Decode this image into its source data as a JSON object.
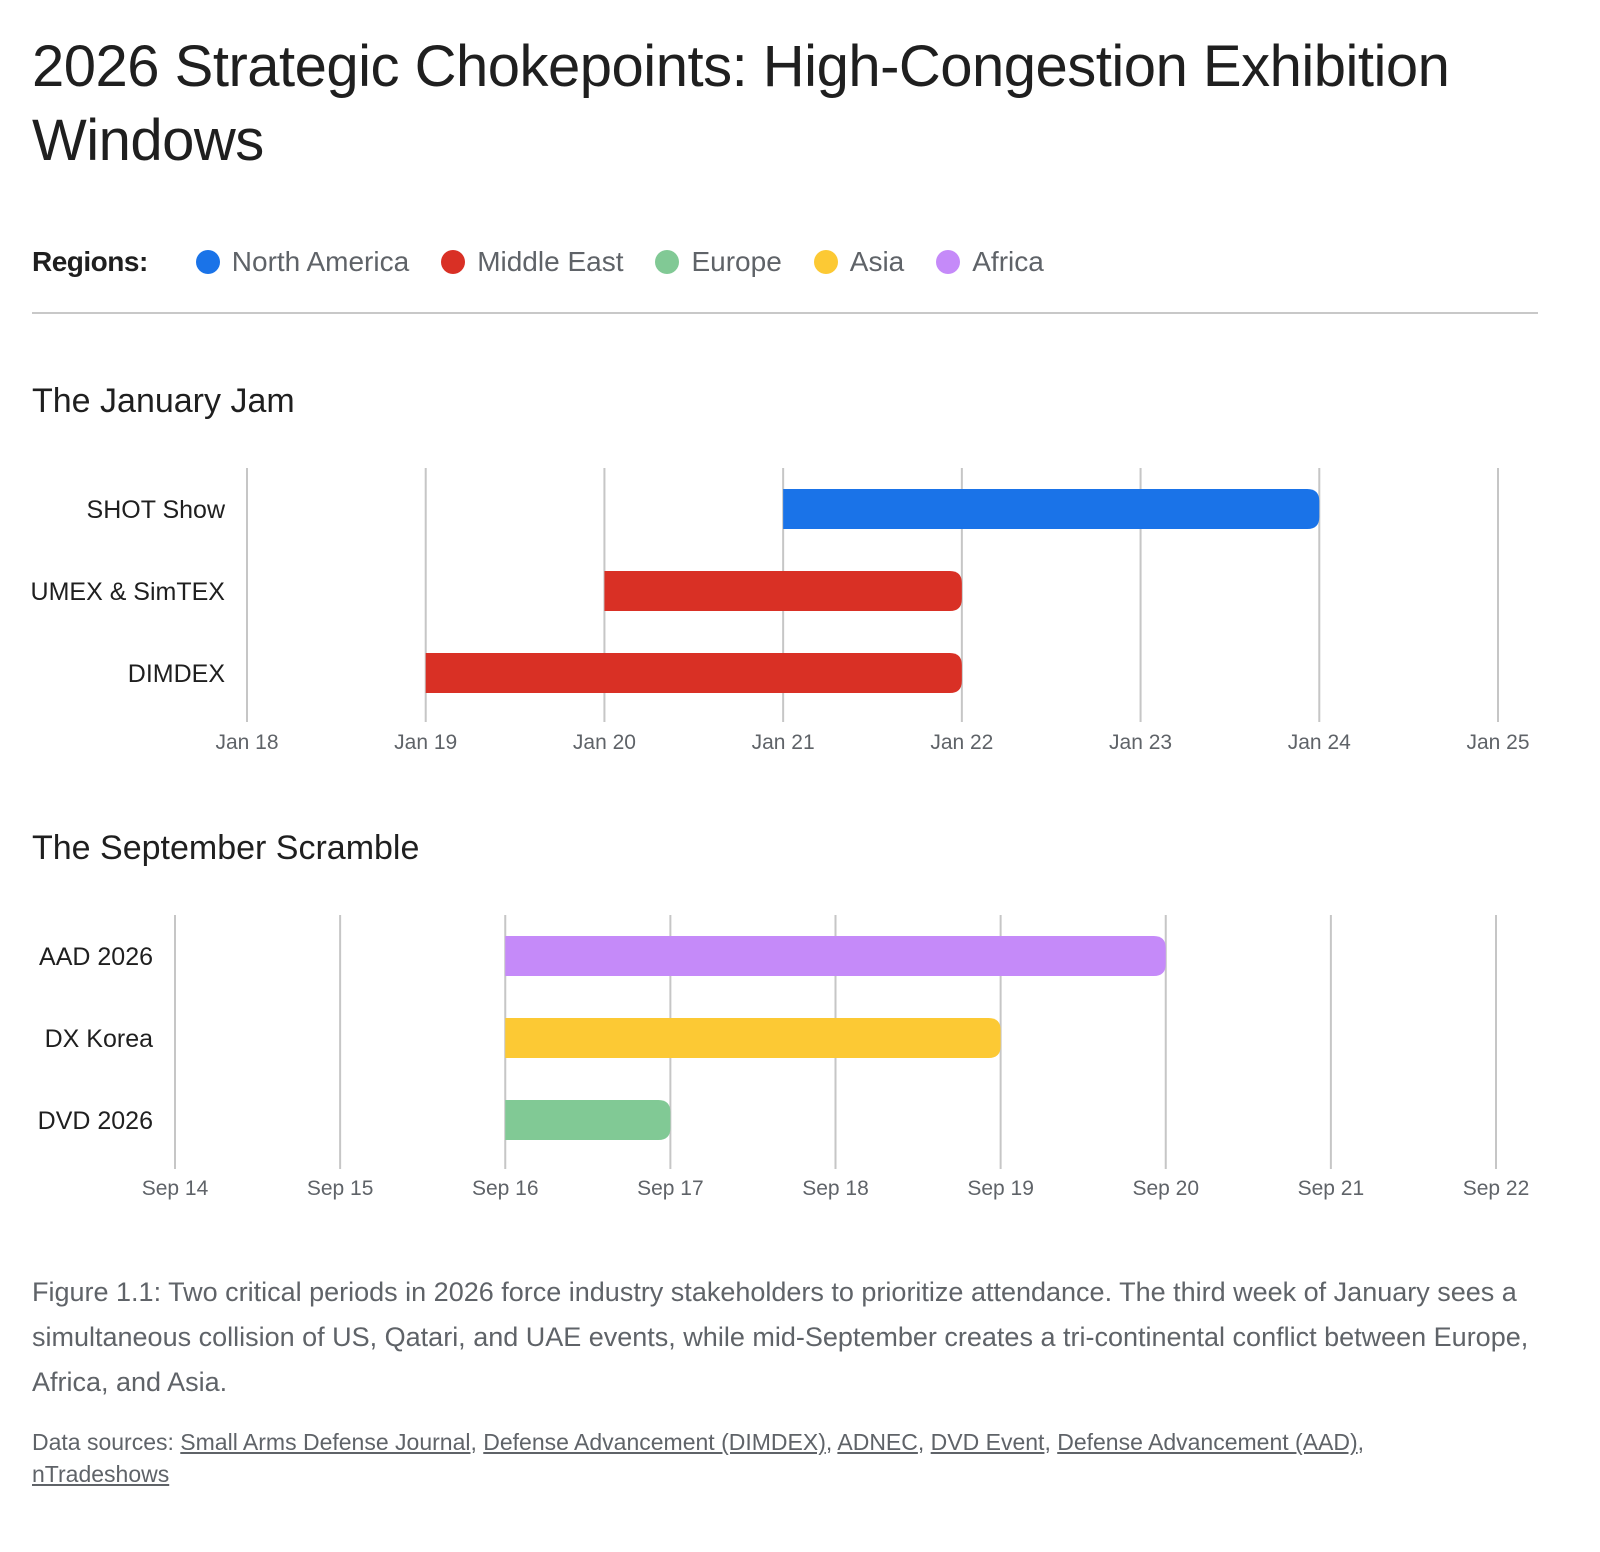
{
  "title": "2026 Strategic Chokepoints: High-Congestion Exhibition Windows",
  "legend": {
    "label": "Regions:",
    "items": [
      {
        "name": "North America",
        "color": "#1a73e8"
      },
      {
        "name": "Middle East",
        "color": "#d93025"
      },
      {
        "name": "Europe",
        "color": "#81c995"
      },
      {
        "name": "Asia",
        "color": "#fcc934"
      },
      {
        "name": "Africa",
        "color": "#c58af9"
      }
    ]
  },
  "chart_data": [
    {
      "type": "bar",
      "subtype": "gantt",
      "title": "The January Jam",
      "x_ticks": [
        "Jan 18",
        "Jan 19",
        "Jan 20",
        "Jan 21",
        "Jan 22",
        "Jan 23",
        "Jan 24",
        "Jan 25"
      ],
      "x_range": [
        18,
        25
      ],
      "grid": true,
      "events": [
        {
          "name": "SHOT Show",
          "region": "North America",
          "start": 21,
          "end": 24,
          "start_label": "Jan 21",
          "end_label": "Jan 24"
        },
        {
          "name": "UMEX & SimTEX",
          "region": "Middle East",
          "start": 20,
          "end": 22,
          "start_label": "Jan 20",
          "end_label": "Jan 22"
        },
        {
          "name": "DIMDEX",
          "region": "Middle East",
          "start": 19,
          "end": 22,
          "start_label": "Jan 19",
          "end_label": "Jan 22"
        }
      ]
    },
    {
      "type": "bar",
      "subtype": "gantt",
      "title": "The September Scramble",
      "x_ticks": [
        "Sep 14",
        "Sep 15",
        "Sep 16",
        "Sep 17",
        "Sep 18",
        "Sep 19",
        "Sep 20",
        "Sep 21",
        "Sep 22"
      ],
      "x_range": [
        14,
        22
      ],
      "grid": true,
      "events": [
        {
          "name": "AAD 2026",
          "region": "Africa",
          "start": 16,
          "end": 20,
          "start_label": "Sep 16",
          "end_label": "Sep 20"
        },
        {
          "name": "DX Korea",
          "region": "Asia",
          "start": 16,
          "end": 19,
          "start_label": "Sep 16",
          "end_label": "Sep 19"
        },
        {
          "name": "DVD 2026",
          "region": "Europe",
          "start": 16,
          "end": 17,
          "start_label": "Sep 16",
          "end_label": "Sep 17"
        }
      ]
    }
  ],
  "caption": "Figure 1.1: Two critical periods in 2026 force industry stakeholders to prioritize attendance. The third week of January sees a simultaneous collision of US, Qatari, and UAE events, while mid-September creates a tri-continental conflict between Europe, Africa, and Asia.",
  "sources": {
    "label": "Data sources:",
    "links": [
      "Small Arms Defense Journal",
      "Defense Advancement (DIMDEX)",
      "ADNEC",
      "DVD Event",
      "Defense Advancement (AAD)",
      "nTradeshows"
    ]
  }
}
